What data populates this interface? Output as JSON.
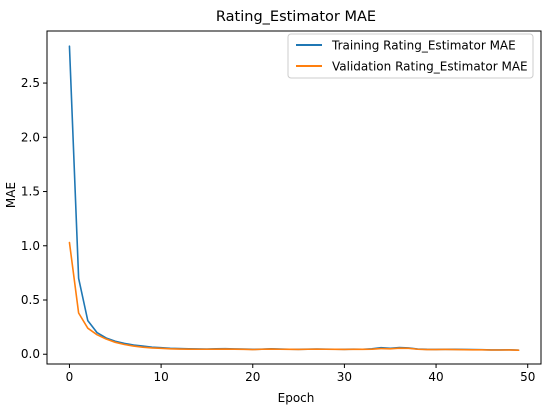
{
  "chart_data": {
    "type": "line",
    "title": "Rating_Estimator MAE",
    "xlabel": "Epoch",
    "ylabel": "MAE",
    "xlim": [
      -2.45,
      51.45
    ],
    "ylim": [
      -0.09,
      2.98
    ],
    "xticks": [
      0,
      10,
      20,
      30,
      40,
      50
    ],
    "yticks": [
      0.0,
      0.5,
      1.0,
      1.5,
      2.0,
      2.5
    ],
    "xtick_labels": [
      "0",
      "10",
      "20",
      "30",
      "40",
      "50"
    ],
    "ytick_labels": [
      "0.0",
      "0.5",
      "1.0",
      "1.5",
      "2.0",
      "2.5"
    ],
    "grid": false,
    "legend_position": "upper right",
    "x": [
      0,
      1,
      2,
      3,
      4,
      5,
      6,
      7,
      8,
      9,
      10,
      11,
      12,
      13,
      14,
      15,
      16,
      17,
      18,
      19,
      20,
      21,
      22,
      23,
      24,
      25,
      26,
      27,
      28,
      29,
      30,
      31,
      32,
      33,
      34,
      35,
      36,
      37,
      38,
      39,
      40,
      41,
      42,
      43,
      44,
      45,
      46,
      47,
      48,
      49
    ],
    "series": [
      {
        "name": "Training Rating_Estimator MAE",
        "color": "#1f77b4",
        "values": [
          2.84,
          0.7,
          0.31,
          0.2,
          0.15,
          0.12,
          0.1,
          0.085,
          0.075,
          0.065,
          0.06,
          0.055,
          0.052,
          0.05,
          0.049,
          0.048,
          0.05,
          0.051,
          0.049,
          0.048,
          0.045,
          0.047,
          0.05,
          0.048,
          0.046,
          0.045,
          0.047,
          0.048,
          0.047,
          0.046,
          0.045,
          0.047,
          0.046,
          0.05,
          0.06,
          0.055,
          0.062,
          0.058,
          0.048,
          0.045,
          0.044,
          0.046,
          0.045,
          0.044,
          0.043,
          0.042,
          0.04,
          0.04,
          0.041,
          0.038
        ]
      },
      {
        "name": "Validation Rating_Estimator MAE",
        "color": "#ff7f0e",
        "values": [
          1.03,
          0.38,
          0.24,
          0.18,
          0.14,
          0.11,
          0.09,
          0.075,
          0.065,
          0.058,
          0.055,
          0.05,
          0.048,
          0.047,
          0.046,
          0.046,
          0.047,
          0.048,
          0.047,
          0.045,
          0.043,
          0.046,
          0.048,
          0.046,
          0.045,
          0.044,
          0.046,
          0.047,
          0.046,
          0.045,
          0.044,
          0.046,
          0.045,
          0.047,
          0.052,
          0.05,
          0.056,
          0.055,
          0.046,
          0.043,
          0.043,
          0.044,
          0.043,
          0.042,
          0.041,
          0.041,
          0.039,
          0.039,
          0.04,
          0.037
        ]
      }
    ]
  }
}
